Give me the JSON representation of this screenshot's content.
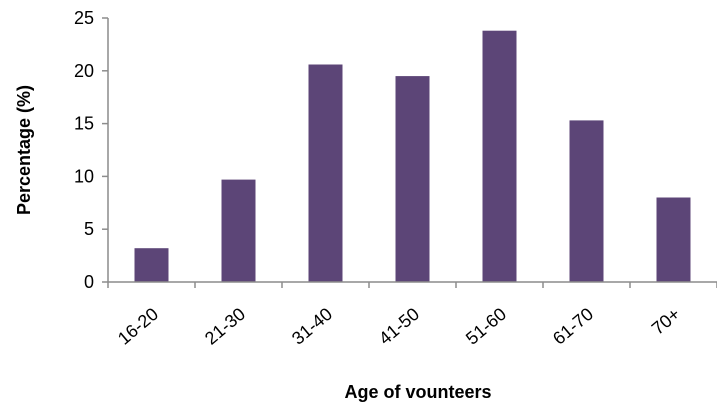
{
  "chart_data": {
    "type": "bar",
    "categories": [
      "16-20",
      "21-30",
      "31-40",
      "41-50",
      "51-60",
      "61-70",
      "70+"
    ],
    "values": [
      3.2,
      9.7,
      20.6,
      19.5,
      23.8,
      15.3,
      8.0
    ],
    "xlabel": "Age of vounteers",
    "ylabel": "Percentage (%)",
    "ylim": [
      0,
      25
    ],
    "yticks": [
      0,
      5,
      10,
      15,
      20,
      25
    ],
    "grid": false,
    "legend": "none",
    "bar_color": "#5c4577",
    "axis_color": "#8c8c8c"
  }
}
